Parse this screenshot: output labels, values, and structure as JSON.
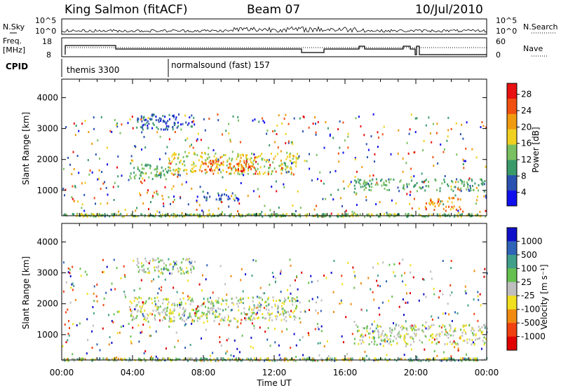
{
  "header": {
    "station": "King Salmon (fitACF)",
    "beam": "Beam 07",
    "date": "10/Jul/2010"
  },
  "status_panel": {
    "left_labels": {
      "nsky": "N.Sky",
      "freq_line1": "Freq.",
      "freq_line2": "[MHz]",
      "cpid": "CPID"
    },
    "right_labels": {
      "nsearch": "N.Search",
      "nave": "Nave"
    },
    "noise_ticks": [
      "10^5",
      "10^0"
    ],
    "freq_ticks": [
      "18",
      "8"
    ],
    "nave_ticks": [
      "60",
      "0"
    ],
    "cpid_segments": [
      {
        "label": "themis 3300",
        "start_hour": 0.0
      },
      {
        "label": "normalsound (fast) 157",
        "start_hour": 6.0
      }
    ]
  },
  "colors": {
    "power_scale": [
      "#1010ee",
      "#2a52b0",
      "#3a9a6a",
      "#7ac060",
      "#f0d020",
      "#f09a10",
      "#f05010",
      "#e81010"
    ],
    "velocity_scale": [
      "#1010c8",
      "#2f63b8",
      "#3f9f8a",
      "#66c050",
      "#bebebe",
      "#f0e020",
      "#f08a10",
      "#f04010",
      "#e00000"
    ]
  },
  "chart_data": [
    {
      "type": "heatmap",
      "name": "power",
      "xlabel": "",
      "ylabel": "Slant Range [km]",
      "x_ticks": [
        "00:00",
        "04:00",
        "08:00",
        "12:00",
        "16:00",
        "20:00",
        "00:00"
      ],
      "y_ticks": [
        "1000",
        "2000",
        "3000",
        "4000"
      ],
      "xlim_hours": [
        0,
        24
      ],
      "ylim_km": [
        180,
        4600
      ],
      "colorbar": {
        "label": "Power [dB]",
        "ticks": [
          "28",
          "24",
          "20",
          "16",
          "12",
          "8",
          "4"
        ],
        "range": [
          0,
          30
        ]
      },
      "regions": [
        {
          "t0": 3.8,
          "t1": 6.0,
          "r0": 1350,
          "r1": 1900,
          "value": 12
        },
        {
          "t0": 6.0,
          "t1": 13.5,
          "r0": 1550,
          "r1": 2250,
          "value": 16
        },
        {
          "t0": 7.5,
          "t1": 11.0,
          "r0": 1650,
          "r1": 2000,
          "value": 24
        },
        {
          "t0": 4.2,
          "t1": 7.5,
          "r0": 3000,
          "r1": 3500,
          "value": 6
        },
        {
          "t0": 16.5,
          "t1": 24.0,
          "r0": 1000,
          "r1": 1400,
          "value": 10
        },
        {
          "t0": 20.5,
          "t1": 22.5,
          "r0": 400,
          "r1": 800,
          "value": 20
        },
        {
          "t0": 8.0,
          "t1": 10.0,
          "r0": 700,
          "r1": 950,
          "value": 6
        }
      ]
    },
    {
      "type": "heatmap",
      "name": "velocity",
      "xlabel": "Time UT",
      "ylabel": "Slant Range [km]",
      "x_ticks": [
        "00:00",
        "04:00",
        "08:00",
        "12:00",
        "16:00",
        "20:00",
        "00:00"
      ],
      "y_ticks": [
        "1000",
        "2000",
        "3000",
        "4000"
      ],
      "xlim_hours": [
        0,
        24
      ],
      "ylim_km": [
        180,
        4600
      ],
      "colorbar": {
        "label": "Velocity [m s⁻¹]",
        "ticks": [
          "1000",
          "500",
          "100",
          "25",
          "-25",
          "-100",
          "-500",
          "-1000"
        ],
        "range": [
          -1000,
          1000
        ]
      },
      "regions": [
        {
          "t0": 3.8,
          "t1": 13.5,
          "r0": 1450,
          "r1": 2250,
          "value": 0
        },
        {
          "t0": 16.5,
          "t1": 24.0,
          "r0": 700,
          "r1": 1350,
          "value": 0
        },
        {
          "t0": 4.2,
          "t1": 7.5,
          "r0": 3000,
          "r1": 3500,
          "value": 60
        }
      ]
    }
  ]
}
